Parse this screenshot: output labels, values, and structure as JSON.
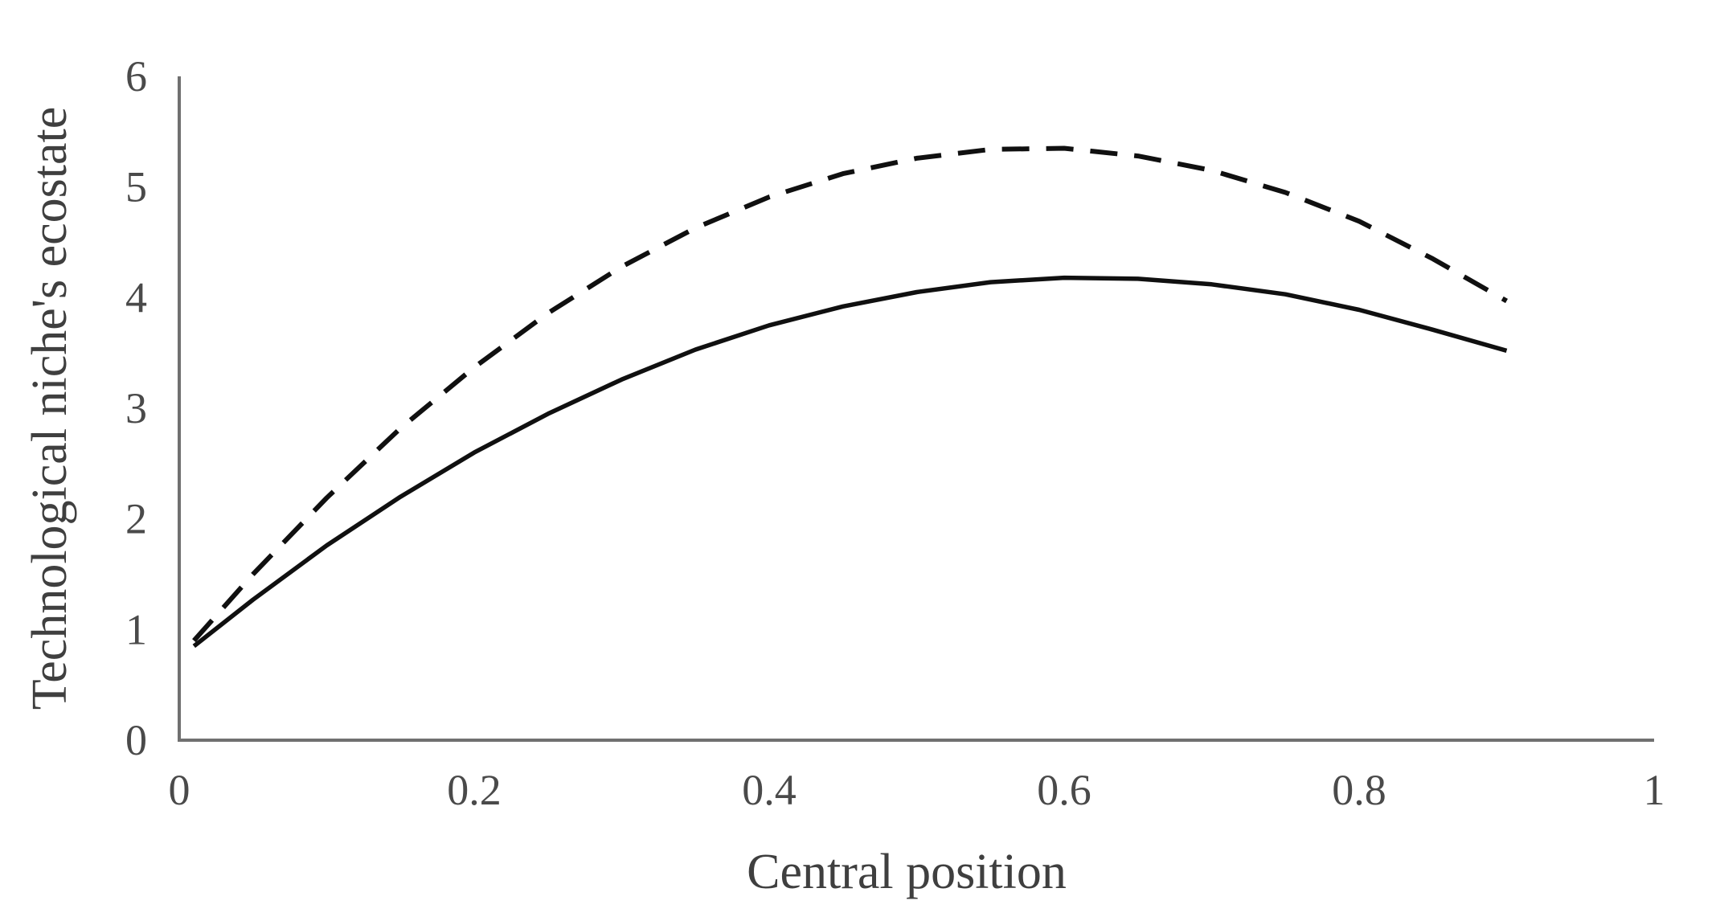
{
  "figure": {
    "background": "#ffffff"
  },
  "colors": {
    "curve": "#101010",
    "axis_line": "#707070",
    "tick_text": "#4a4a4a",
    "title_text": "#3f3f3f"
  },
  "chart_data": {
    "type": "line",
    "title": "",
    "xlabel": "Central position",
    "ylabel": "Technological niche's ecostate",
    "xlim": [
      0,
      1
    ],
    "ylim": [
      0,
      6
    ],
    "grid": false,
    "legend_position": "none",
    "x_ticks": [
      0,
      0.2,
      0.4,
      0.6,
      0.8,
      1
    ],
    "x_tick_labels": [
      "0",
      "0.2",
      "0.4",
      "0.6",
      "0.8",
      "1"
    ],
    "y_ticks": [
      0,
      1,
      2,
      3,
      4,
      5,
      6
    ],
    "y_tick_labels": [
      "0",
      "1",
      "2",
      "3",
      "4",
      "5",
      "6"
    ],
    "x": [
      0.01,
      0.05,
      0.1,
      0.15,
      0.2,
      0.25,
      0.3,
      0.35,
      0.4,
      0.45,
      0.5,
      0.55,
      0.6,
      0.65,
      0.7,
      0.75,
      0.8,
      0.85,
      0.9
    ],
    "series": [
      {
        "name": "dashed-curve",
        "style": "dashed",
        "values": [
          0.9,
          1.5,
          2.19,
          2.82,
          3.37,
          3.86,
          4.28,
          4.63,
          4.91,
          5.12,
          5.26,
          5.34,
          5.35,
          5.28,
          5.15,
          4.95,
          4.69,
          4.35,
          3.97
        ]
      },
      {
        "name": "solid-curve",
        "style": "solid",
        "values": [
          0.85,
          1.27,
          1.76,
          2.2,
          2.6,
          2.95,
          3.26,
          3.53,
          3.75,
          3.92,
          4.05,
          4.14,
          4.18,
          4.17,
          4.12,
          4.03,
          3.89,
          3.71,
          3.52
        ]
      }
    ]
  }
}
